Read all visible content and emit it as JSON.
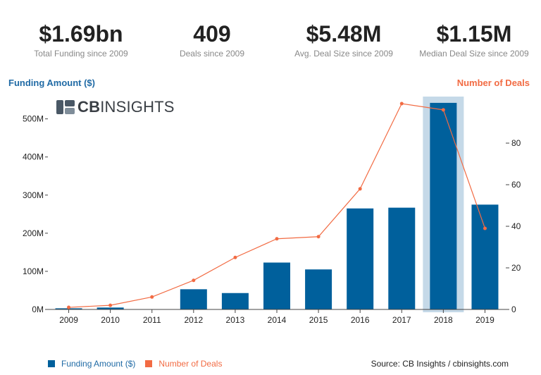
{
  "kpis": [
    {
      "value": "$1.69bn",
      "label": "Total Funding since 2009"
    },
    {
      "value": "409",
      "label": "Deals since 2009"
    },
    {
      "value": "$5.48M",
      "label": "Avg. Deal Size since 2009"
    },
    {
      "value": "$1.15M",
      "label": "Median Deal Size since 2009"
    }
  ],
  "logo": {
    "bold": "CB",
    "rest": "INSIGHTS"
  },
  "chart_data": {
    "type": "bar",
    "categories": [
      "2009",
      "2010",
      "2011",
      "2012",
      "2013",
      "2014",
      "2015",
      "2016",
      "2017",
      "2018",
      "2019"
    ],
    "series": [
      {
        "name": "Funding Amount ($)",
        "type": "bar",
        "axis": "left",
        "values": [
          3,
          5,
          0,
          53,
          43,
          123,
          105,
          265,
          267,
          542,
          275
        ],
        "unit": "M",
        "color": "#00609c"
      },
      {
        "name": "Number of Deals",
        "type": "line",
        "axis": "right",
        "values": [
          1,
          2,
          6,
          14,
          25,
          34,
          35,
          58,
          99,
          96,
          39
        ],
        "color": "#f26b43"
      }
    ],
    "highlight_category": "2018",
    "highlight_color": "#c5d9e8",
    "ylabel": "Funding Amount ($)",
    "y2label": "Number of Deals",
    "ylim": [
      0,
      540
    ],
    "y2lim": [
      0,
      99
    ],
    "yticks": [
      0,
      100,
      200,
      300,
      400,
      500
    ],
    "ytick_labels": [
      "0M",
      "100M",
      "200M",
      "300M",
      "400M",
      "500M"
    ],
    "y2ticks": [
      0,
      20,
      40,
      60,
      80
    ],
    "y2tick_labels": [
      "0",
      "20",
      "40",
      "60",
      "80"
    ],
    "legend_position": "bottom-left",
    "grid": false
  },
  "source": "Source: CB Insights / cbinsights.com"
}
